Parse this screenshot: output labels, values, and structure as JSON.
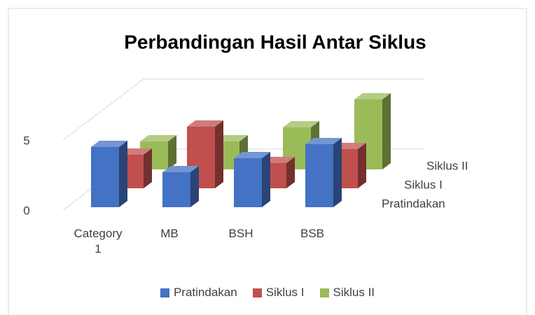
{
  "chart_data": {
    "type": "bar3d",
    "title": "Perbandingan Hasil Antar Siklus",
    "categories": [
      "Category 1",
      "MB",
      "BSH",
      "BSB"
    ],
    "series": [
      {
        "name": "Pratindakan",
        "color": "#4472c4",
        "values": [
          4.3,
          2.5,
          3.5,
          4.5
        ]
      },
      {
        "name": "Siklus I",
        "color": "#c0504d",
        "values": [
          2.4,
          4.4,
          1.8,
          2.8
        ]
      },
      {
        "name": "Siklus II",
        "color": "#9bbb59",
        "values": [
          2,
          2,
          3,
          5
        ]
      }
    ],
    "ylim": [
      0,
      5
    ],
    "yticks": [
      0,
      5
    ],
    "grid": true,
    "legend": "bottom"
  }
}
